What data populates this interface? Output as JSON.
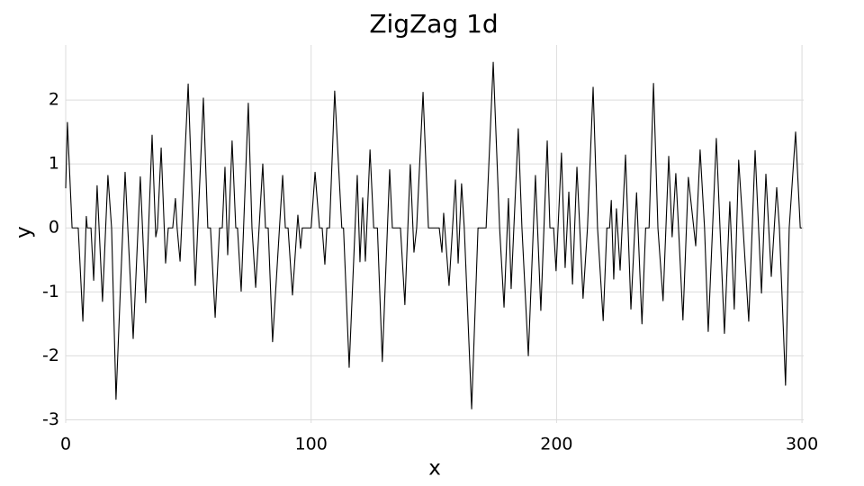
{
  "chart_data": {
    "type": "line",
    "title": "ZigZag 1d",
    "x_label": "x",
    "y_label": "y",
    "x": [
      0,
      0.7,
      2.6,
      5.1,
      7,
      8.4,
      8.8,
      10.3,
      11.4,
      12.8,
      15,
      17.2,
      18.7,
      20.5,
      24.2,
      25.3,
      27.5,
      30.4,
      32.6,
      35.2,
      36.7,
      37.4,
      38.9,
      40.7,
      41.8,
      43.6,
      44.7,
      45.4,
      46.6,
      49.9,
      52.8,
      56.1,
      57.9,
      59,
      60.9,
      62.7,
      63.8,
      64.9,
      66,
      67.8,
      69.3,
      70,
      71.5,
      74.4,
      75.9,
      77.4,
      80.3,
      81.4,
      82.5,
      84.3,
      88.4,
      89.5,
      90.6,
      92.4,
      94.6,
      95.7,
      96.4,
      100,
      101.6,
      103.4,
      104.5,
      105.6,
      106.4,
      107.5,
      109.6,
      112.5,
      113.2,
      115.5,
      118.8,
      119.9,
      121,
      122.1,
      124,
      125.5,
      127,
      129,
      132,
      133.1,
      136.4,
      138.2,
      140.4,
      141.9,
      143,
      145.6,
      147.8,
      152.2,
      153.3,
      154,
      156.2,
      158.8,
      159.9,
      161.3,
      162.4,
      165.4,
      168,
      171.3,
      174.2,
      176.8,
      178.6,
      180.4,
      181.5,
      184.4,
      185.9,
      188.5,
      191.4,
      193.6,
      196.2,
      197.3,
      198.8,
      199.8,
      202,
      203.5,
      205,
      206.5,
      208.3,
      210.8,
      212.6,
      214.9,
      216.7,
      219,
      220.5,
      221.6,
      222.3,
      223.3,
      224.4,
      225.9,
      228.1,
      230.3,
      232.6,
      234.8,
      236.3,
      237.7,
      239.5,
      241.3,
      243.4,
      245.7,
      247.1,
      248.6,
      249.7,
      251.5,
      253.7,
      256.7,
      258.5,
      260.3,
      261.8,
      265.1,
      266.6,
      268.4,
      270.6,
      272.4,
      274.2,
      276,
      278.3,
      280.9,
      283.5,
      285.3,
      287.5,
      289.7,
      290.8,
      293.3,
      294.8,
      297.4,
      299.3,
      300
    ],
    "series": [
      {
        "color": "#000000",
        "values": [
          0.62,
          1.65,
          0,
          0,
          -1.46,
          0.18,
          0,
          0,
          -0.82,
          0.66,
          -1.15,
          0.82,
          0,
          -2.68,
          0.87,
          0,
          -1.73,
          0.8,
          -1.17,
          1.45,
          -0.14,
          0,
          1.25,
          -0.55,
          0,
          0,
          0.46,
          0,
          -0.52,
          2.25,
          -0.9,
          2.03,
          0,
          0,
          -1.4,
          0,
          0,
          0.95,
          -0.42,
          1.36,
          0,
          0,
          -0.99,
          1.95,
          0,
          -0.93,
          1.0,
          0,
          0,
          -1.78,
          0.82,
          0,
          0,
          -1.05,
          0.2,
          -0.32,
          0,
          0,
          0.87,
          0,
          0,
          -0.57,
          0,
          0,
          2.14,
          0,
          0,
          -2.18,
          0.82,
          -0.53,
          0.47,
          -0.52,
          1.22,
          0,
          0,
          -2.09,
          0.91,
          0,
          0,
          -1.2,
          0.99,
          -0.38,
          0,
          2.12,
          0,
          0,
          -0.38,
          0.23,
          -0.9,
          0.75,
          -0.55,
          0.69,
          0,
          -2.83,
          0,
          0,
          2.59,
          0,
          -1.24,
          0.46,
          -0.95,
          1.55,
          0,
          -2.0,
          0.82,
          -1.29,
          1.36,
          0,
          0,
          -0.67,
          1.17,
          -0.62,
          0.56,
          -0.88,
          0.95,
          -1.1,
          0,
          2.2,
          0,
          -1.45,
          0,
          0,
          0.43,
          -0.8,
          0.3,
          -0.66,
          1.14,
          -1.27,
          0.55,
          -1.5,
          0,
          0,
          2.26,
          0,
          -1.14,
          1.12,
          -0.14,
          0.85,
          0,
          -1.44,
          0.79,
          -0.28,
          1.22,
          0,
          -1.62,
          1.4,
          0,
          -1.65,
          0.41,
          -1.27,
          1.06,
          0,
          -1.46,
          1.21,
          -1.02,
          0.84,
          -0.76,
          0.63,
          0,
          -2.46,
          0,
          1.5,
          0,
          0
        ]
      }
    ],
    "xlim": [
      0,
      300.7
    ],
    "ylim": [
      -3.05,
      2.86
    ],
    "xticks": [
      0,
      100,
      200,
      300
    ],
    "yticks": [
      -3,
      -2,
      -1,
      0,
      1,
      2
    ],
    "grid": true
  }
}
